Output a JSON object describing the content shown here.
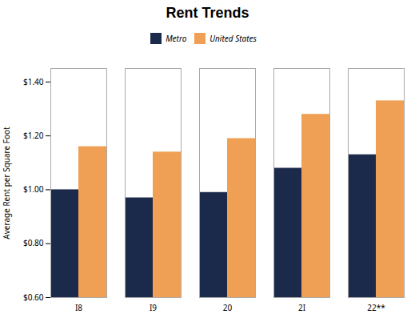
{
  "chart_data": {
    "type": "bar",
    "title": "Rent Trends",
    "categories": [
      "I8",
      "I9",
      "20",
      "2I",
      "22**"
    ],
    "series": [
      {
        "name": "Metro",
        "color": "#1b2a4a",
        "values": [
          1.0,
          0.97,
          0.99,
          1.08,
          1.13
        ]
      },
      {
        "name": "United States",
        "color": "#f0a054",
        "values": [
          1.16,
          1.14,
          1.19,
          1.28,
          1.33
        ]
      }
    ],
    "ylabel": "Average Rent per Square Foot",
    "ylim": [
      0.6,
      1.45
    ],
    "yticks": [
      {
        "value": 0.6,
        "label": "$0.60"
      },
      {
        "value": 0.8,
        "label": "$0.80"
      },
      {
        "value": 1.0,
        "label": "$1.00"
      },
      {
        "value": 1.2,
        "label": "$1.20"
      },
      {
        "value": 1.4,
        "label": "$1.40"
      }
    ],
    "grid": false,
    "legend": "top"
  }
}
